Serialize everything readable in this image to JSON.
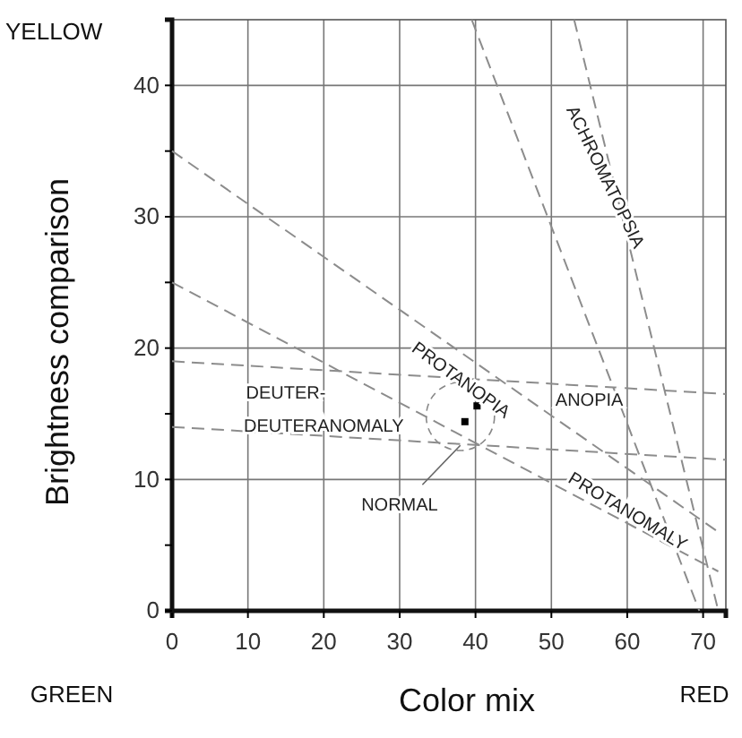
{
  "chart_data": {
    "type": "line",
    "xlabel": "Color mix",
    "ylabel": "Brightness comparison",
    "xlim": [
      0,
      73
    ],
    "ylim": [
      0,
      45
    ],
    "xticks": [
      0,
      10,
      20,
      30,
      40,
      50,
      60,
      70
    ],
    "yticks": [
      0,
      {
        "value": 5,
        "label": null
      },
      10,
      {
        "value": 15,
        "label": null
      },
      20,
      {
        "value": 25,
        "label": null
      },
      30,
      {
        "value": 35,
        "label": null
      },
      40
    ],
    "grid": true,
    "line_style": "dashed",
    "marker": "none",
    "series": [
      {
        "color": "#8c8c8c",
        "x": [
          0,
          72
        ],
        "values": [
          35,
          6
        ]
      },
      {
        "color": "#8c8c8c",
        "x": [
          0,
          72
        ],
        "values": [
          25,
          3
        ]
      },
      {
        "color": "#8c8c8c",
        "x": [
          0,
          73
        ],
        "values": [
          19,
          16.5
        ]
      },
      {
        "color": "#8c8c8c",
        "x": [
          0,
          73
        ],
        "values": [
          14,
          11.5
        ]
      },
      {
        "color": "#8c8c8c",
        "x": [
          39.5,
          69.5
        ],
        "values": [
          45,
          0
        ]
      },
      {
        "color": "#8c8c8c",
        "x": [
          53,
          72
        ],
        "values": [
          45,
          0
        ]
      },
      {
        "type": "scatter",
        "color": "#000000",
        "marker": "square",
        "x": [
          38.6,
          40.2
        ],
        "values": [
          14.4,
          15.6
        ]
      }
    ],
    "annotations": [
      "YELLOW",
      "GREEN",
      "RED",
      "ACHROMATOPSIA",
      "PROTANOPIA",
      "ANOPIA",
      "DEUTER-",
      "DEUTERANOMALY",
      "NORMAL",
      "PROTANOMALY"
    ]
  }
}
